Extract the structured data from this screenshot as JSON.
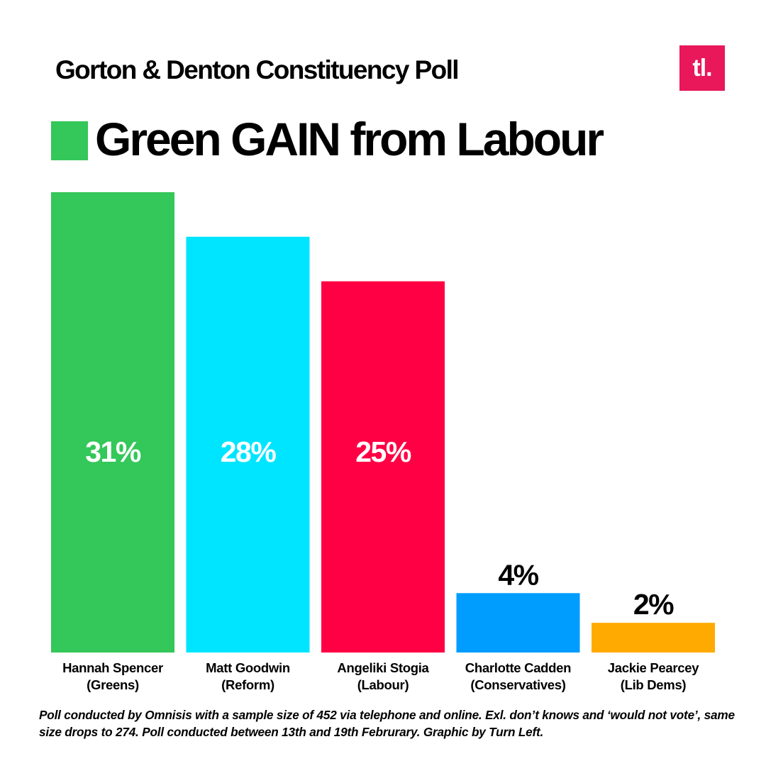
{
  "header": {
    "title": "Gorton & Denton Constituency Poll",
    "logo_text": "tl.",
    "logo_color": "#e8185a"
  },
  "headline": {
    "text": "Green GAIN from Labour",
    "swatch_color": "#34c759"
  },
  "chart_data": {
    "type": "bar",
    "title": "Gorton & Denton Constituency Poll",
    "xlabel": "",
    "ylabel": "",
    "ylim": [
      0,
      31
    ],
    "grid": false,
    "categories": [
      {
        "name": "Hannah Spencer",
        "party": "(Greens)"
      },
      {
        "name": "Matt Goodwin",
        "party": "(Reform)"
      },
      {
        "name": "Angeliki Stogia",
        "party": "(Labour)"
      },
      {
        "name": "Charlotte Cadden",
        "party": "(Conservatives)"
      },
      {
        "name": "Jackie Pearcey",
        "party": "(Lib Dems)"
      }
    ],
    "values": [
      31,
      28,
      25,
      4,
      2
    ],
    "value_labels": [
      "31%",
      "28%",
      "25%",
      "4%",
      "2%"
    ],
    "colors": [
      "#34c759",
      "#00e5ff",
      "#ff0044",
      "#009dff",
      "#ffaa00"
    ]
  },
  "footnote": "Poll conducted by Omnisis with a sample size of 452 via telephone and online. Exl. don’t knows and ‘would not vote’, same size drops to 274. Poll conducted between 13th and 19th Februrary. Graphic by Turn Left."
}
